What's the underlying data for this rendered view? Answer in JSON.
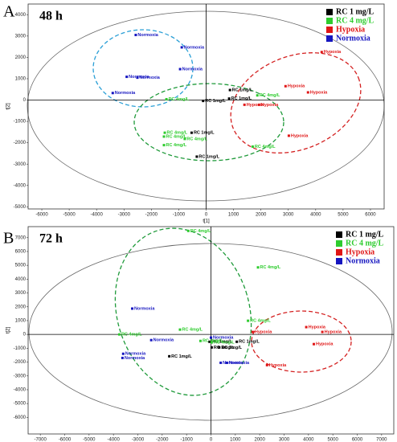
{
  "chart_data": [
    {
      "type": "scatter",
      "panel": "A",
      "title": "48 h",
      "x_label": "t[1]",
      "y_label": "t[2]",
      "xlim": [
        -6500,
        6500
      ],
      "xticks": [
        -6000,
        -5000,
        -4000,
        -3000,
        -2000,
        -1000,
        0,
        1000,
        2000,
        3000,
        4000,
        5000,
        6000
      ],
      "ylim": [
        -5100,
        4500
      ],
      "yticks": [
        -5000,
        -4000,
        -3000,
        -2000,
        -1000,
        0,
        1000,
        2000,
        3000,
        4000
      ],
      "legend": "top-right",
      "series": [
        {
          "name": "RC 1 mg/L",
          "color": "#000000",
          "x": [
            870,
            840,
            -110,
            -530,
            -340
          ],
          "values": [
            470,
            70,
            -40,
            -1530,
            -2650
          ],
          "labels": [
            "RC 1mg/L",
            "RC 1mg/L",
            "RC 1mg/L",
            "RC 1mg/L",
            "RC 1mg/L"
          ]
        },
        {
          "name": "RC 4 mg/L",
          "color": "#2ecc2e",
          "x": [
            1870,
            -1450,
            -1510,
            -1540,
            -780,
            -1540,
            1700
          ],
          "values": [
            220,
            40,
            -1530,
            -1710,
            -1820,
            -2110,
            -2180
          ],
          "labels": [
            "RC 4mg/L",
            "RC 4mg/L",
            "RC 4mg/L",
            "RC 4mg/L",
            "RC 4mg/L",
            "RC 4mg/L",
            "RC 4mg/L"
          ]
        },
        {
          "name": "Hypoxia",
          "color": "#e01515",
          "x": [
            4220,
            2900,
            3720,
            1400,
            1930,
            3020
          ],
          "values": [
            2250,
            650,
            360,
            -220,
            -220,
            -1670
          ],
          "labels": [
            "Hypoxia",
            "Hypoxia",
            "Hypoxia",
            "Hypoxia",
            "Hypoxia",
            "Hypoxia"
          ]
        },
        {
          "name": "Normoxia",
          "color": "#1515c0",
          "x": [
            -2570,
            -890,
            -950,
            -2900,
            -2510,
            -3410
          ],
          "values": [
            3050,
            2470,
            1450,
            1090,
            1050,
            330
          ],
          "labels": [
            "Normoxia",
            "Normoxia",
            "Normoxia",
            "Normoxia",
            "Normoxia",
            "Normoxia"
          ]
        }
      ]
    },
    {
      "type": "scatter",
      "panel": "B",
      "title": "72 h",
      "x_label": "t[1]",
      "y_label": "t[2]",
      "xlim": [
        -7500,
        7500
      ],
      "xticks": [
        -7000,
        -6000,
        -5000,
        -4000,
        -3000,
        -2000,
        -1000,
        0,
        1000,
        2000,
        3000,
        4000,
        5000,
        6000,
        7000
      ],
      "ylim": [
        -7200,
        7800
      ],
      "yticks": [
        -6000,
        -5000,
        -4000,
        -3000,
        -2000,
        -1000,
        0,
        1000,
        2000,
        3000,
        4000,
        5000,
        6000,
        7000
      ],
      "legend": "top-right",
      "series": [
        {
          "name": "RC 1 mg/L",
          "color": "#000000",
          "x": [
            -60,
            30,
            340,
            1060,
            -1710
          ],
          "values": [
            -530,
            -940,
            -940,
            -530,
            -1580
          ],
          "labels": [
            "RC 1mg/L",
            "RC 1mg/L",
            "RC 1mg/L",
            "RC 1mg/L",
            "RC 1mg/L"
          ]
        },
        {
          "name": "RC 4 mg/L",
          "color": "#2ecc2e",
          "x": [
            -930,
            1930,
            1520,
            -1270,
            -3760,
            -430,
            30
          ],
          "values": [
            7490,
            4850,
            990,
            350,
            0,
            -470,
            -580
          ],
          "labels": [
            "RC 4mg/L",
            "RC 4mg/L",
            "RC 4mg/L",
            "RC 4mg/L",
            "RC 4mg/L",
            "RC 4mg/L",
            "RC 4mg/L"
          ]
        },
        {
          "name": "Hypoxia",
          "color": "#e01515",
          "x": [
            3910,
            1710,
            4570,
            4220,
            2300
          ],
          "values": [
            530,
            180,
            180,
            -700,
            -2220
          ],
          "labels": [
            "Hypoxia",
            "Hypoxia",
            "Hypoxia",
            "Hypoxia",
            "Hypoxia"
          ]
        },
        {
          "name": "Normoxia",
          "color": "#1515c0",
          "x": [
            -3230,
            0,
            -2450,
            -3600,
            -3630,
            400,
            650
          ],
          "values": [
            1870,
            -230,
            -410,
            -1400,
            -1700,
            -2050,
            -2050
          ],
          "labels": [
            "Normoxia",
            "Normoxia",
            "Normoxia",
            "Normoxia",
            "Normoxia",
            "Normoxia",
            "Normoxia"
          ]
        }
      ]
    }
  ]
}
